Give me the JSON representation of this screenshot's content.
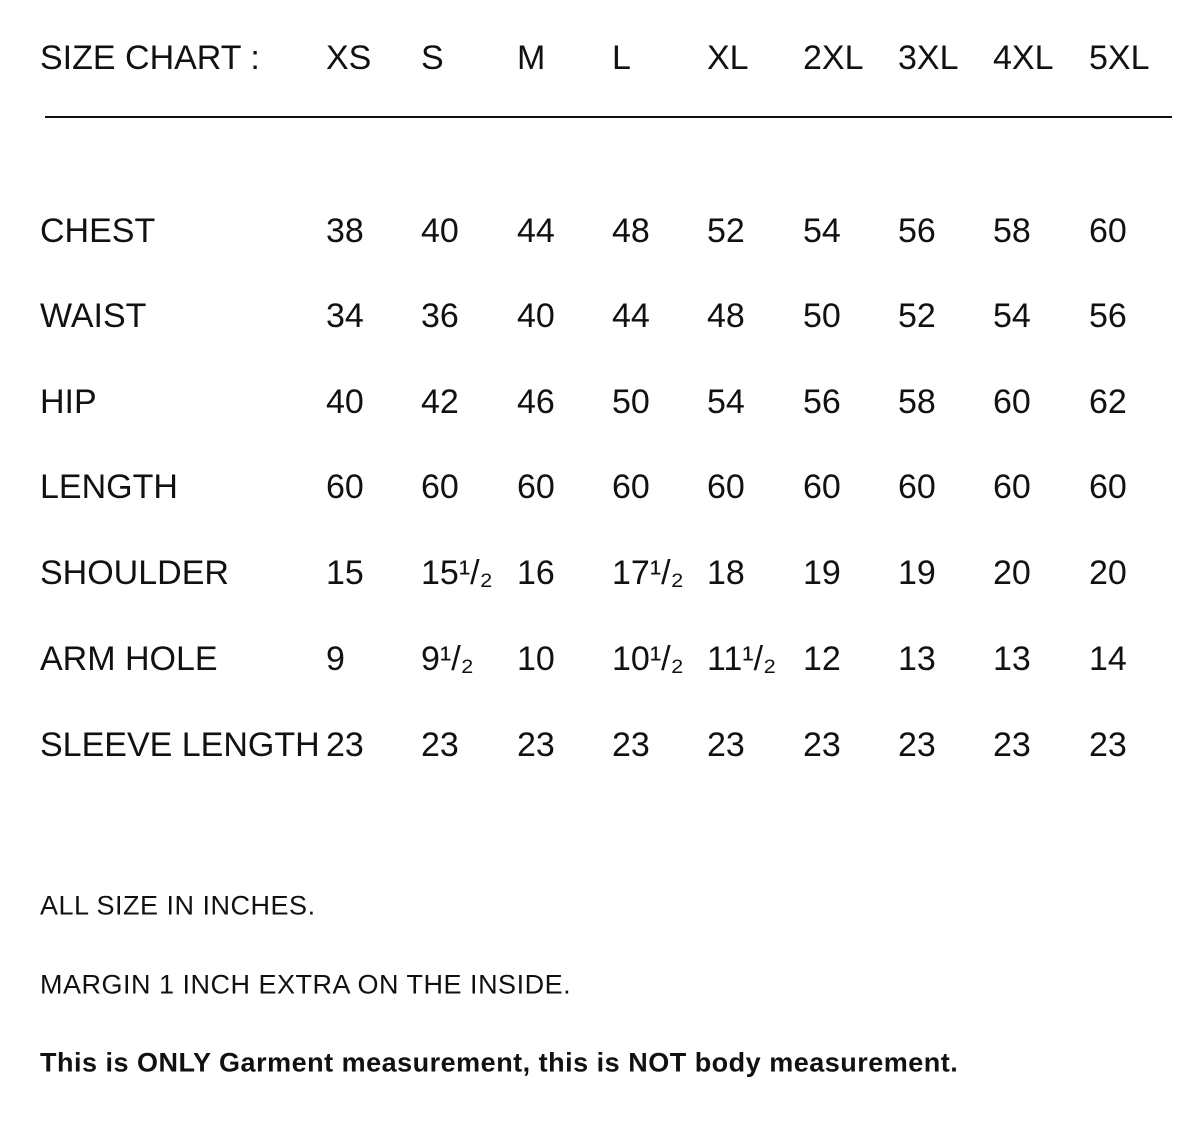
{
  "table": {
    "title": "SIZE CHART :",
    "columns": [
      "XS",
      "S",
      "M",
      "L",
      "XL",
      "2XL",
      "3XL",
      "4XL",
      "5XL"
    ],
    "rows": [
      {
        "label": "CHEST",
        "cells": [
          38,
          40,
          44,
          48,
          52,
          54,
          56,
          58,
          60
        ]
      },
      {
        "label": "WAIST",
        "cells": [
          34,
          36,
          40,
          44,
          48,
          50,
          52,
          54,
          56
        ]
      },
      {
        "label": "HIP",
        "cells": [
          40,
          42,
          46,
          50,
          54,
          56,
          58,
          60,
          62
        ]
      },
      {
        "label": "LENGTH",
        "cells": [
          60,
          60,
          60,
          60,
          60,
          60,
          60,
          60,
          60
        ]
      },
      {
        "label": "SHOULDER",
        "cells": [
          15,
          "15¹/₂",
          16,
          "17¹/₂",
          18,
          19,
          19,
          20,
          20
        ]
      },
      {
        "label": "ARM HOLE",
        "cells": [
          9,
          "9¹/₂",
          10,
          "10¹/₂",
          "11¹/₂",
          12,
          13,
          13,
          14
        ]
      },
      {
        "label": "SLEEVE LENGTH",
        "cells": [
          23,
          23,
          23,
          23,
          23,
          23,
          23,
          23,
          23
        ]
      }
    ]
  },
  "notes": [
    "ALL SIZE IN INCHES.",
    "MARGIN 1 INCH EXTRA ON THE INSIDE."
  ],
  "disclaimer": "This is ONLY Garment measurement, this is NOT body measurement."
}
